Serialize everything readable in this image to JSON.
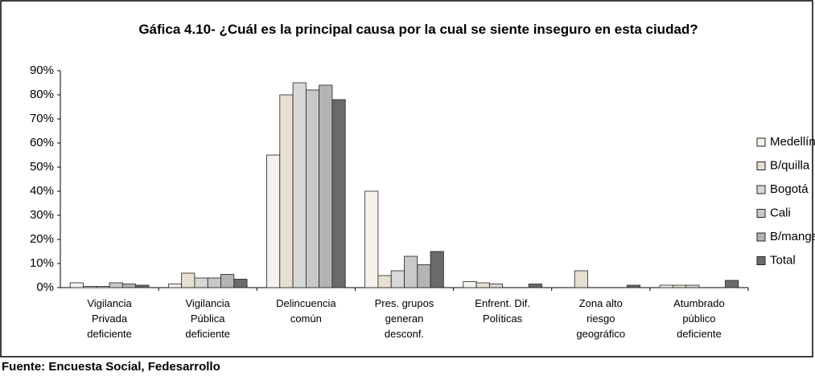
{
  "chart_data": {
    "type": "bar",
    "title": "Gáfica 4.10- ¿Cuál es la principal causa por la cual se siente inseguro en esta ciudad?",
    "source": "Fuente: Encuesta Social, Fedesarrollo",
    "categories": [
      "Vigilancia Privada deficiente",
      "Vigilancia Pública deficiente",
      "Delincuencia común",
      "Pres. grupos generan desconf.",
      "Enfrent. Dif. Políticas",
      "Zona alto riesgo geográfico",
      "Atumbrado público deficiente"
    ],
    "series": [
      {
        "name": "Medellín",
        "color": "#f4f2ea",
        "values": [
          2,
          1.5,
          55,
          40,
          2.5,
          0,
          1
        ]
      },
      {
        "name": "B/quilla",
        "color": "#e6e0d2",
        "values": [
          0.5,
          6,
          80,
          5,
          2,
          7,
          1
        ]
      },
      {
        "name": "Bogotá",
        "color": "#d8d8d8",
        "values": [
          0.5,
          4,
          85,
          7,
          1.5,
          0,
          1
        ]
      },
      {
        "name": "Cali",
        "color": "#c8c8c8",
        "values": [
          2,
          4,
          82,
          13,
          0,
          0,
          0
        ]
      },
      {
        "name": "B/manga",
        "color": "#b4b4b4",
        "values": [
          1.5,
          5.5,
          84,
          9.5,
          0,
          0,
          0
        ]
      },
      {
        "name": "Total",
        "color": "#6a6a6a",
        "values": [
          1,
          3.5,
          78,
          15,
          1.5,
          1,
          3
        ]
      }
    ],
    "ylim": [
      0,
      90
    ],
    "yticks": [
      {
        "value": 0,
        "label": "0%"
      },
      {
        "value": 10,
        "label": "10%"
      },
      {
        "value": 20,
        "label": "20%"
      },
      {
        "value": 30,
        "label": "30%"
      },
      {
        "value": 40,
        "label": "40%"
      },
      {
        "value": 50,
        "label": "50%"
      },
      {
        "value": 60,
        "label": "60%"
      },
      {
        "value": 70,
        "label": "70%"
      },
      {
        "value": 80,
        "label": "80%"
      },
      {
        "value": 90,
        "label": "90%"
      }
    ],
    "grid": false,
    "legend": "right"
  }
}
